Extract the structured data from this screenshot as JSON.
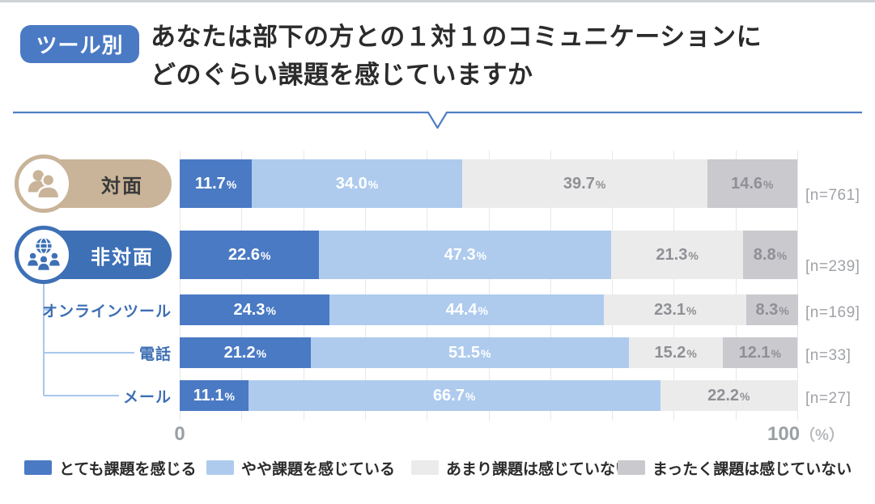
{
  "header": {
    "badge": "ツール別",
    "title_line1": "あなたは部下の方との１対１のコミュニケーションに",
    "title_line2": "どのぐらい課題を感じていますか"
  },
  "chart_data": {
    "type": "bar",
    "stacked": true,
    "orientation": "horizontal",
    "title": "ツール別　あなたは部下の方との１対１のコミュニケーションにどのぐらい課題を感じていますか",
    "unit": "%",
    "xlim": [
      0,
      100
    ],
    "grid": {
      "show": true,
      "interval_percent": 10
    },
    "axis": {
      "min_label": "0",
      "max_label": "100",
      "unit_label": "（%）"
    },
    "series": [
      {
        "name": "とても課題を感じる",
        "color": "#4a7ac4",
        "label_color": "#ffffff"
      },
      {
        "name": "やや課題を感じている",
        "color": "#aecbee",
        "label_color": "#ffffff"
      },
      {
        "name": "あまり課題は感じていない",
        "color": "#ebebeb",
        "label_color": "#8f9095"
      },
      {
        "name": "まったく課題は感じていない",
        "color": "#c9c9ce",
        "label_color": "#8f9095"
      }
    ],
    "rows": [
      {
        "label": "対面",
        "type": "category-main",
        "icon": "two-people-icon",
        "badge_color": "#c9b499",
        "label_color": "#3a3a3a",
        "n_label": "[n=761]",
        "segments": [
          {
            "pct": 11.7,
            "label": "11.7%"
          },
          {
            "pct": 34.0,
            "label": "34.0%"
          },
          {
            "pct": 39.7,
            "label": "39.7%"
          },
          {
            "pct": 14.6,
            "label": "14.6%"
          }
        ]
      },
      {
        "label": "非対面",
        "type": "category-main",
        "icon": "globe-people-icon",
        "badge_color": "#3e70b6",
        "label_color": "#ffffff",
        "n_label": "[n=239]",
        "segments": [
          {
            "pct": 22.6,
            "label": "22.6%"
          },
          {
            "pct": 47.3,
            "label": "47.3%"
          },
          {
            "pct": 21.3,
            "label": "21.3%"
          },
          {
            "pct": 8.8,
            "label": "8.8%"
          }
        ]
      },
      {
        "label": "オンラインツール",
        "type": "category-sub",
        "n_label": "[n=169]",
        "segments": [
          {
            "pct": 24.3,
            "label": "24.3%"
          },
          {
            "pct": 44.4,
            "label": "44.4%"
          },
          {
            "pct": 23.1,
            "label": "23.1%"
          },
          {
            "pct": 8.3,
            "label": "8.3%"
          }
        ]
      },
      {
        "label": "電話",
        "type": "category-sub",
        "n_label": "[n=33]",
        "segments": [
          {
            "pct": 21.2,
            "label": "21.2%"
          },
          {
            "pct": 51.5,
            "label": "51.5%"
          },
          {
            "pct": 15.2,
            "label": "15.2%"
          },
          {
            "pct": 12.1,
            "label": "12.1%"
          }
        ]
      },
      {
        "label": "メール",
        "type": "category-sub",
        "n_label": "[n=27]",
        "segments": [
          {
            "pct": 11.1,
            "label": "11.1%"
          },
          {
            "pct": 66.7,
            "label": "66.7%"
          },
          {
            "pct": 22.2,
            "label": "22.2%"
          }
        ]
      }
    ]
  },
  "colors": {
    "accent_blue": "#4a7ac4",
    "light_blue": "#aecbee",
    "pale_gray": "#ebebeb",
    "mid_gray": "#c9c9ce",
    "tan": "#c9b499",
    "deep_blue": "#3e70b6",
    "tree_line": "#a9c7ec",
    "sub_label_blue": "#3d6eb4",
    "text_dark": "#2b2b2b",
    "muted_gray": "#9aa0a3"
  }
}
